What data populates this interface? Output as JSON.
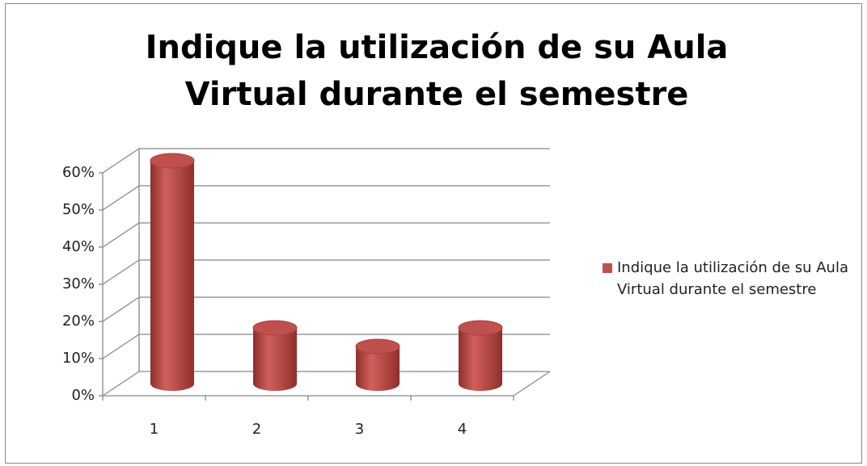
{
  "chart_data": {
    "type": "bar",
    "title": "Indique la utilización de su Aula Virtual durante el semestre",
    "categories": [
      "1",
      "2",
      "3",
      "4"
    ],
    "series": [
      {
        "name": "Indique la utilización de su Aula Virtual durante el semestre",
        "color": "#c0504d",
        "values": [
          60,
          15,
          10,
          15
        ]
      }
    ],
    "ylim": [
      0,
      60
    ],
    "yticks": [
      {
        "value": 0,
        "label": "0%"
      },
      {
        "value": 10,
        "label": "10%"
      },
      {
        "value": 20,
        "label": "20%"
      },
      {
        "value": 30,
        "label": "30%"
      },
      {
        "value": 40,
        "label": "40%"
      },
      {
        "value": 50,
        "label": "50%"
      },
      {
        "value": 60,
        "label": "60%"
      }
    ],
    "grid": true,
    "legend": "right"
  }
}
